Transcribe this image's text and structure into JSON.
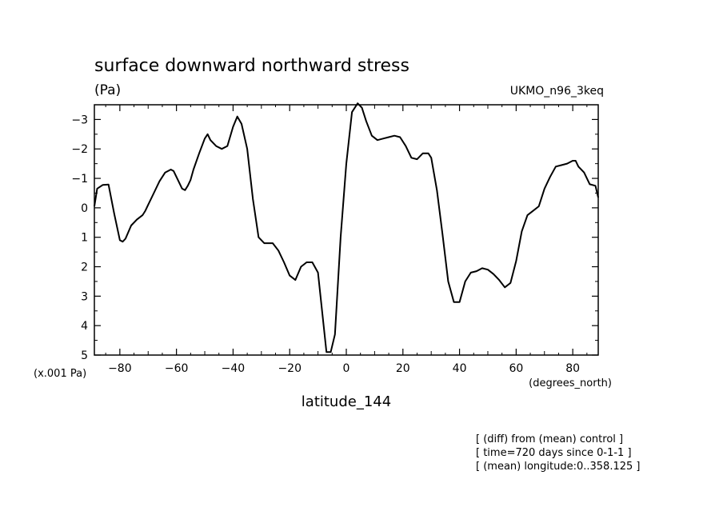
{
  "header": {
    "title": "surface downward northward stress",
    "units": "(Pa)",
    "model": "UKMO_n96_3keq"
  },
  "axes": {
    "y_multiplier": "(x.001 Pa)",
    "x_units": "(degrees_north)",
    "x_label": "latitude_144"
  },
  "notes": [
    "[ (diff) from (mean) control ]",
    "[ time=720 days since 0-1-1 ]",
    "[ (mean) longitude:0..358.125 ]"
  ],
  "chart_data": {
    "type": "line",
    "title": "surface downward northward stress",
    "xlabel": "latitude_144",
    "ylabel": "(Pa)",
    "xlim": [
      -89,
      89
    ],
    "ylim": [
      -3.5,
      5
    ],
    "y_inverted": true,
    "x_ticks": [
      -80,
      -60,
      -40,
      -20,
      0,
      20,
      40,
      60,
      80
    ],
    "y_ticks": [
      -3,
      -2,
      -1,
      0,
      1,
      2,
      3,
      4,
      5
    ],
    "grid": false,
    "series": [
      {
        "x": [
          -89,
          -88,
          -86,
          -84,
          -82,
          -80,
          -79,
          -78,
          -76,
          -74,
          -72,
          -71,
          -70,
          -68,
          -66,
          -64,
          -62,
          -61,
          -60,
          -58,
          -57,
          -56,
          -55,
          -54,
          -52,
          -50,
          -49,
          -48,
          -46,
          -44,
          -42,
          -40,
          -38.5,
          -37,
          -35,
          -33,
          -31,
          -29,
          -28,
          -26,
          -24,
          -22,
          -20,
          -18,
          -16,
          -14,
          -12,
          -10,
          -8.5,
          -7,
          -5.5,
          -4,
          -2,
          0,
          2,
          4,
          5.5,
          7,
          9,
          11,
          13,
          15,
          17,
          19,
          21,
          23,
          25,
          27,
          29,
          30,
          32,
          34,
          36,
          38,
          40,
          42,
          44,
          46,
          48,
          50,
          52,
          54,
          56,
          58,
          60,
          62,
          64,
          66,
          68,
          70,
          72,
          74,
          76,
          78,
          80,
          81,
          82,
          84,
          86,
          88,
          89
        ],
        "y": [
          -0.05,
          -0.65,
          -0.78,
          -0.79,
          0.2,
          1.1,
          1.15,
          1.05,
          0.6,
          0.4,
          0.25,
          0.1,
          -0.1,
          -0.5,
          -0.9,
          -1.2,
          -1.3,
          -1.25,
          -1.05,
          -0.65,
          -0.6,
          -0.75,
          -0.95,
          -1.3,
          -1.85,
          -2.35,
          -2.5,
          -2.3,
          -2.1,
          -2.0,
          -2.1,
          -2.75,
          -3.1,
          -2.85,
          -2.0,
          -0.3,
          1.0,
          1.2,
          1.2,
          1.2,
          1.45,
          1.85,
          2.3,
          2.45,
          2.0,
          1.85,
          1.85,
          2.2,
          3.55,
          4.9,
          4.9,
          4.3,
          1.0,
          -1.5,
          -3.25,
          -3.55,
          -3.4,
          -2.95,
          -2.45,
          -2.3,
          -2.35,
          -2.4,
          -2.45,
          -2.4,
          -2.1,
          -1.7,
          -1.65,
          -1.85,
          -1.85,
          -1.7,
          -0.6,
          0.9,
          2.5,
          3.2,
          3.2,
          2.5,
          2.2,
          2.15,
          2.05,
          2.1,
          2.25,
          2.45,
          2.7,
          2.55,
          1.8,
          0.8,
          0.25,
          0.1,
          -0.05,
          -0.65,
          -1.05,
          -1.4,
          -1.45,
          -1.5,
          -1.6,
          -1.6,
          -1.4,
          -1.2,
          -0.8,
          -0.75,
          -0.35
        ]
      }
    ]
  }
}
